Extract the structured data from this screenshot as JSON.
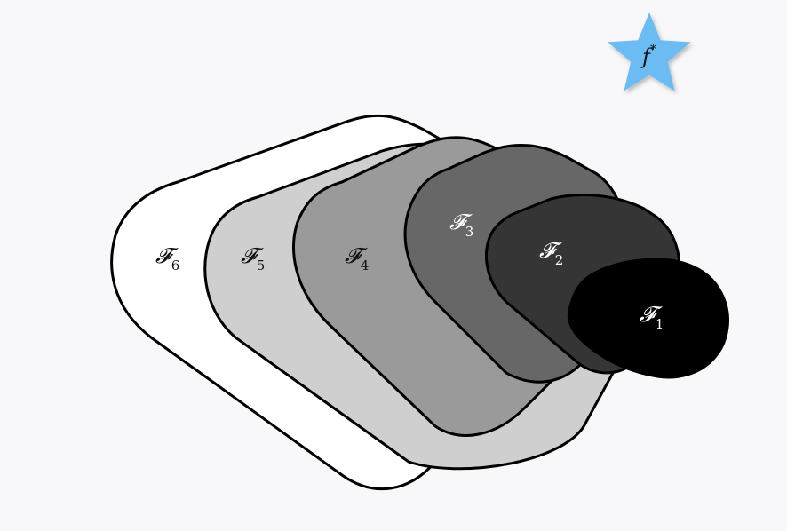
{
  "diagram": {
    "sets": [
      {
        "id": "F6",
        "letter": "𝓕",
        "subscript": "6",
        "fill": "#ffffff",
        "text_color": "#111111"
      },
      {
        "id": "F5",
        "letter": "𝓕",
        "subscript": "5",
        "fill": "#cfcfcf",
        "text_color": "#111111"
      },
      {
        "id": "F4",
        "letter": "𝓕",
        "subscript": "4",
        "fill": "#9a9a9a",
        "text_color": "#111111"
      },
      {
        "id": "F3",
        "letter": "𝓕",
        "subscript": "3",
        "fill": "#676767",
        "text_color": "#ffffff"
      },
      {
        "id": "F2",
        "letter": "𝓕",
        "subscript": "2",
        "fill": "#353535",
        "text_color": "#ffffff"
      },
      {
        "id": "F1",
        "letter": "𝓕",
        "subscript": "1",
        "fill": "#000000",
        "text_color": "#ffffff"
      }
    ],
    "target": {
      "letter": "f",
      "superscript": "*",
      "star_color": "#6bbcf3",
      "icon": "star-icon"
    }
  }
}
